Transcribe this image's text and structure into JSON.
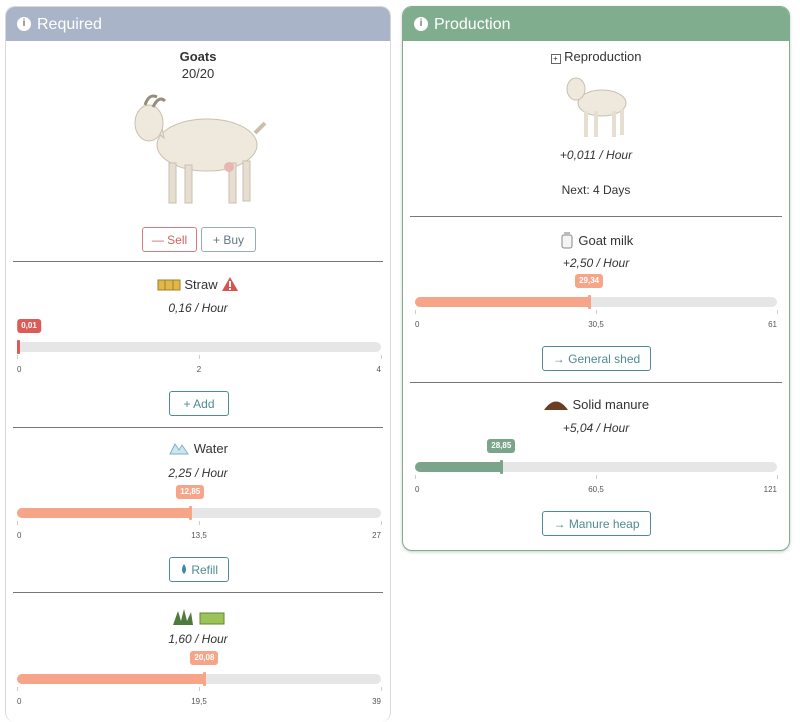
{
  "required": {
    "title": "Required",
    "animal": {
      "name": "Goats",
      "count": "20/20",
      "buttons": [
        "Sell",
        "Buy"
      ]
    },
    "resources": [
      {
        "name": "Straw",
        "rate": "0,16 / Hour",
        "gauge": {
          "value": 0.01,
          "value_label": "0,01",
          "color": "#dc5b57",
          "ticks": [
            0,
            2,
            4
          ]
        },
        "button": "Add"
      },
      {
        "name": "Water",
        "rate": "2,25 / Hour",
        "gauge": {
          "value": 12.85,
          "value_label": "12,85",
          "color": "#f6a589",
          "ticks": [
            0,
            {
              "value": 13.5,
              "label": "13,5"
            },
            27
          ]
        },
        "button": "Refill"
      },
      {
        "rate": "1,60 / Hour",
        "gauge": {
          "value": 20.08,
          "value_label": "20,08",
          "color": "#f6a589",
          "ticks": [
            0,
            {
              "value": 19.5,
              "label": "19,5"
            },
            39
          ]
        }
      }
    ]
  },
  "production": {
    "title": "Production",
    "reproduction": {
      "label": "Reproduction",
      "rate": "+0,011 / Hour",
      "next": "Next: 4 Days"
    },
    "products": [
      {
        "name": "Goat milk",
        "rate": "+2,50 / Hour",
        "gauge": {
          "value": 29.34,
          "value_label": "29,34",
          "color": "#f6a589",
          "ticks": [
            0,
            {
              "value": 30.5,
              "label": "30,5"
            },
            61
          ]
        },
        "button": "General shed"
      },
      {
        "name": "Solid manure",
        "rate": "+5,04 / Hour",
        "gauge": {
          "value": 28.85,
          "value_label": "28,85",
          "color": "#7aa58a",
          "ticks": [
            0,
            {
              "value": 60.5,
              "label": "60,5"
            },
            121
          ]
        },
        "button": "Manure heap"
      }
    ]
  }
}
